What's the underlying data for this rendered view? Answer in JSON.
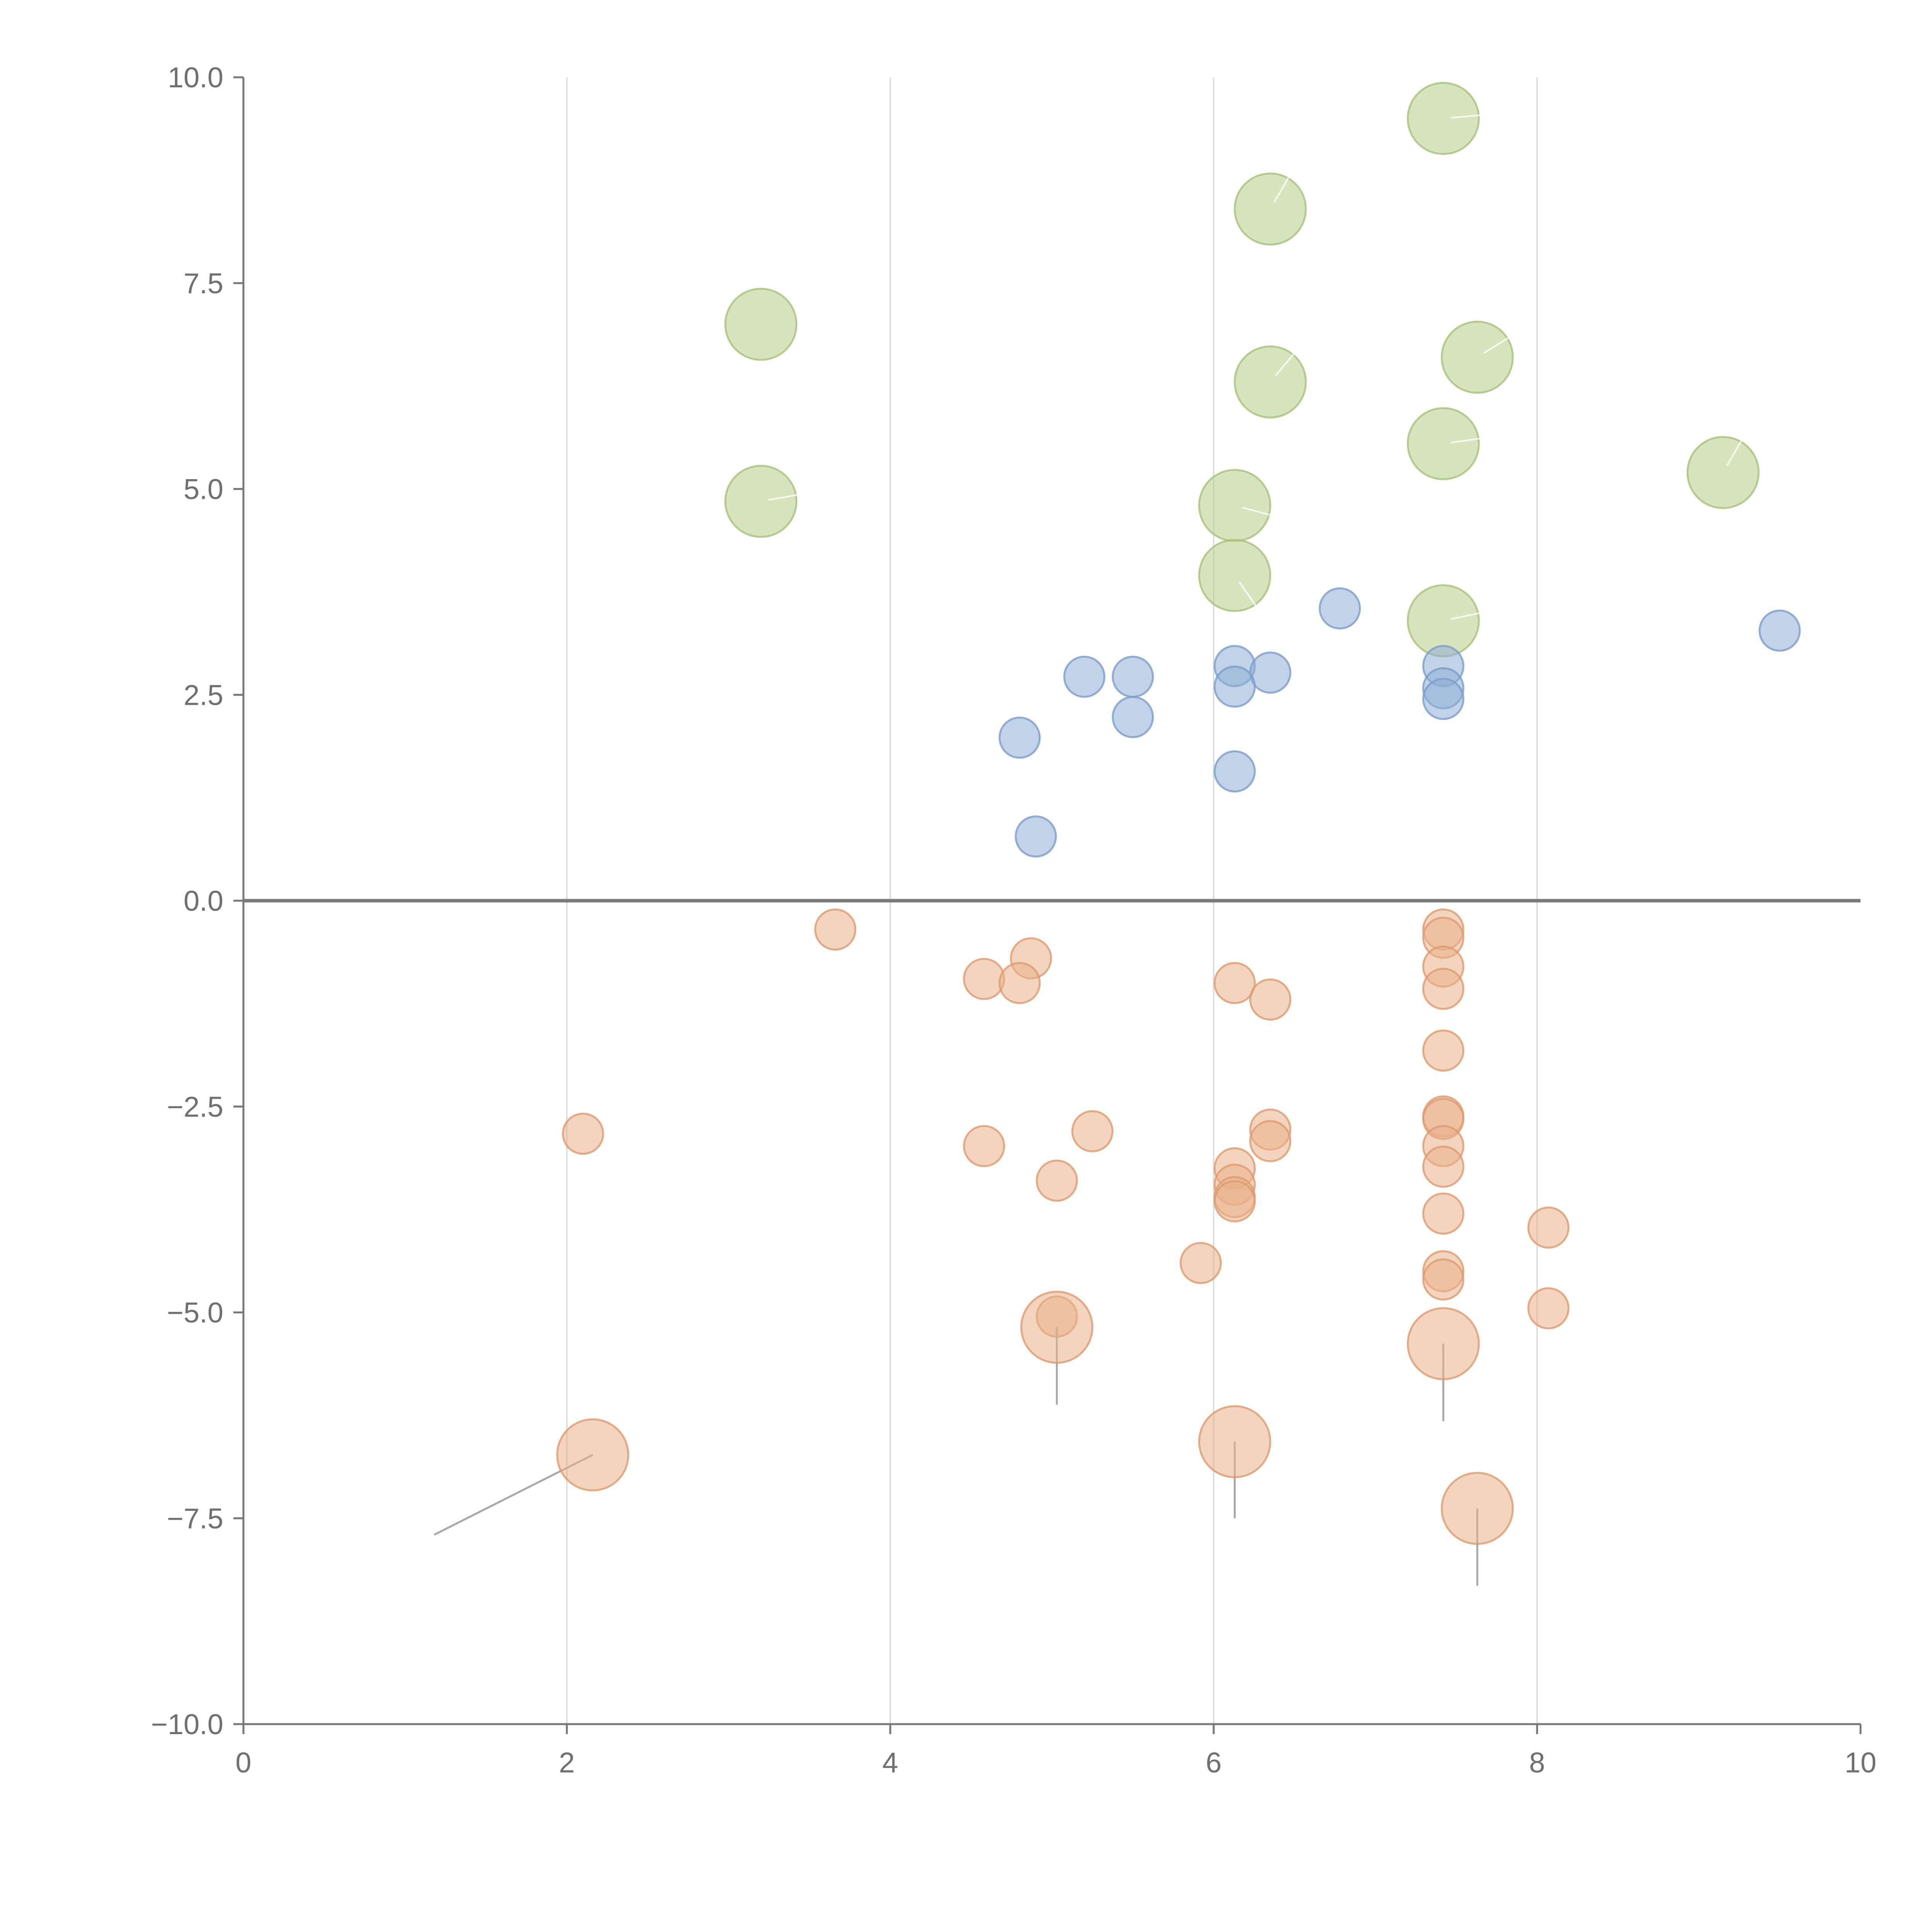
{
  "chart_data": {
    "type": "scatter",
    "title": "",
    "xlabel": "",
    "ylabel": "",
    "xlim": [
      0,
      10
    ],
    "ylim": [
      -10,
      10
    ],
    "x_ticks": [
      0,
      2,
      4,
      6,
      8,
      10
    ],
    "x_tick_labels": [
      "0",
      "2",
      "4",
      "6",
      "8",
      "10"
    ],
    "y_ticks": [
      10,
      7.5,
      5,
      2.5,
      0,
      -2.5,
      -5,
      -7.5,
      -10
    ],
    "y_tick_labels": [
      "10.0",
      "7.5",
      "5.0",
      "2.5",
      "0.0",
      "−2.5",
      "−5.0",
      "−7.5",
      "−10.0"
    ],
    "grid": "vertical",
    "reference_line_y": 0,
    "series": [
      {
        "name": "green",
        "color": "#b6cf88",
        "edge_color": "#a6c27a",
        "size": "large",
        "points": [
          {
            "x": 7.42,
            "y": 9.5,
            "angle": 5
          },
          {
            "x": 6.35,
            "y": 8.4,
            "angle": 60
          },
          {
            "x": 3.2,
            "y": 7.0
          },
          {
            "x": 7.63,
            "y": 6.6,
            "angle": 32
          },
          {
            "x": 6.35,
            "y": 6.3,
            "angle": 50
          },
          {
            "x": 7.42,
            "y": 5.55,
            "angle": 8
          },
          {
            "x": 9.15,
            "y": 5.2,
            "angle": 60
          },
          {
            "x": 3.2,
            "y": 4.85,
            "angle": 10
          },
          {
            "x": 6.13,
            "y": 4.8,
            "angle": -15
          },
          {
            "x": 6.13,
            "y": 3.95,
            "angle": -55
          },
          {
            "x": 7.42,
            "y": 3.4,
            "angle": 12
          }
        ]
      },
      {
        "name": "blue",
        "color": "#8eaed6",
        "edge_color": "#7a9cc8",
        "size": "small",
        "points": [
          {
            "x": 6.78,
            "y": 3.55
          },
          {
            "x": 9.5,
            "y": 3.28
          },
          {
            "x": 7.42,
            "y": 2.85
          },
          {
            "x": 6.13,
            "y": 2.85
          },
          {
            "x": 6.35,
            "y": 2.77
          },
          {
            "x": 5.2,
            "y": 2.72
          },
          {
            "x": 5.5,
            "y": 2.72
          },
          {
            "x": 6.13,
            "y": 2.6
          },
          {
            "x": 7.42,
            "y": 2.58
          },
          {
            "x": 7.42,
            "y": 2.45
          },
          {
            "x": 5.5,
            "y": 2.23
          },
          {
            "x": 4.8,
            "y": 1.98
          },
          {
            "x": 6.13,
            "y": 1.57
          },
          {
            "x": 4.9,
            "y": 0.78
          }
        ]
      },
      {
        "name": "orange",
        "color": "#eab18a",
        "edge_color": "#dd9a6e",
        "size": "small",
        "points": [
          {
            "x": 3.66,
            "y": -0.35
          },
          {
            "x": 7.42,
            "y": -0.35
          },
          {
            "x": 7.42,
            "y": -0.45
          },
          {
            "x": 4.87,
            "y": -0.7
          },
          {
            "x": 7.42,
            "y": -0.8
          },
          {
            "x": 4.58,
            "y": -0.95
          },
          {
            "x": 4.8,
            "y": -1.0
          },
          {
            "x": 6.13,
            "y": -1.0
          },
          {
            "x": 7.42,
            "y": -1.07
          },
          {
            "x": 6.35,
            "y": -1.2
          },
          {
            "x": 7.42,
            "y": -1.82
          },
          {
            "x": 7.42,
            "y": -2.62
          },
          {
            "x": 7.42,
            "y": -2.65
          },
          {
            "x": 6.35,
            "y": -2.78
          },
          {
            "x": 5.25,
            "y": -2.8
          },
          {
            "x": 2.1,
            "y": -2.83
          },
          {
            "x": 6.35,
            "y": -2.92
          },
          {
            "x": 4.58,
            "y": -2.98
          },
          {
            "x": 7.42,
            "y": -2.98
          },
          {
            "x": 6.13,
            "y": -3.25
          },
          {
            "x": 7.42,
            "y": -3.23
          },
          {
            "x": 5.03,
            "y": -3.4
          },
          {
            "x": 6.13,
            "y": -3.45
          },
          {
            "x": 6.13,
            "y": -3.6
          },
          {
            "x": 6.13,
            "y": -3.65
          },
          {
            "x": 7.42,
            "y": -3.8
          },
          {
            "x": 8.07,
            "y": -3.97
          },
          {
            "x": 5.92,
            "y": -4.4
          },
          {
            "x": 7.42,
            "y": -4.5
          },
          {
            "x": 7.42,
            "y": -4.6
          },
          {
            "x": 8.07,
            "y": -4.95
          },
          {
            "x": 5.03,
            "y": -5.05
          }
        ]
      },
      {
        "name": "orange-large",
        "color": "#eab18a",
        "edge_color": "#dd9a6e",
        "size": "large",
        "points": [
          {
            "x": 5.03,
            "y": -5.18,
            "leader_to": [
              5.03,
              -6.12
            ]
          },
          {
            "x": 7.42,
            "y": -5.38,
            "leader_to": [
              7.42,
              -6.32
            ]
          },
          {
            "x": 6.13,
            "y": -6.57,
            "leader_to": [
              6.13,
              -7.5
            ]
          },
          {
            "x": 2.16,
            "y": -6.73,
            "leader_to": [
              1.18,
              -7.7
            ]
          },
          {
            "x": 7.63,
            "y": -7.38,
            "leader_to": [
              7.63,
              -8.32
            ]
          }
        ]
      }
    ]
  }
}
